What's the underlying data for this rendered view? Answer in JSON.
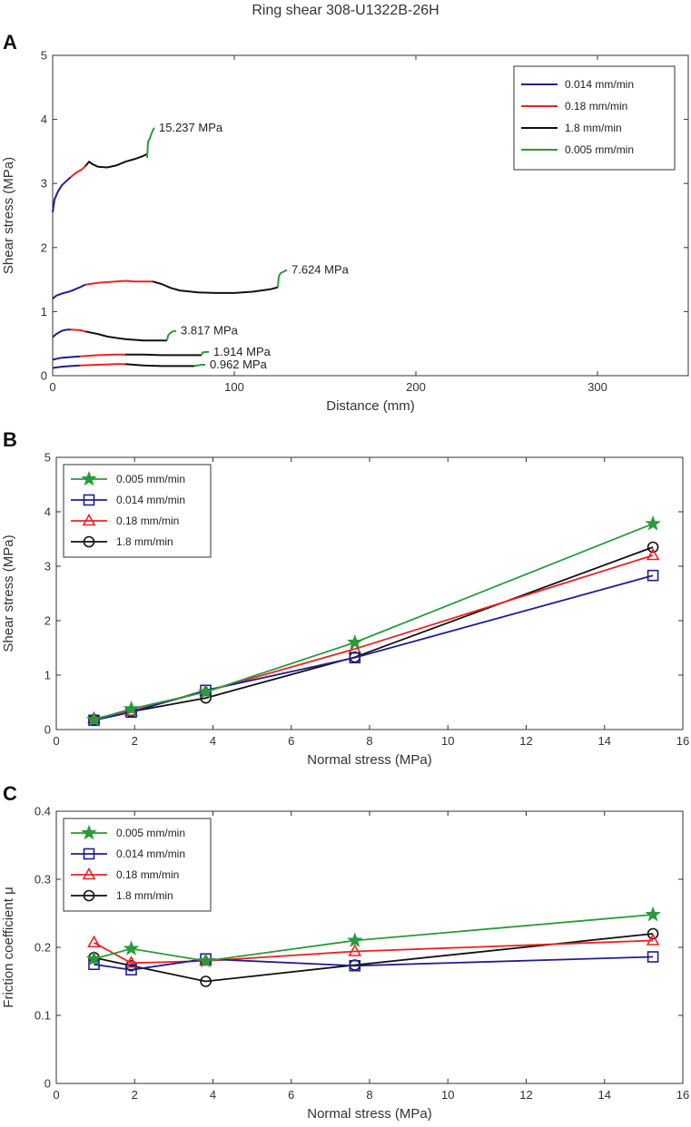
{
  "figure_title": "Ring shear 308-U1322B-26H",
  "chart_data": [
    {
      "panel": "A",
      "type": "line",
      "xlabel": "Distance (mm)",
      "ylabel": "Shear stress (MPa)",
      "xlim": [
        0,
        350
      ],
      "ylim": [
        0,
        5
      ],
      "xticks": [
        0,
        100,
        200,
        300
      ],
      "yticks": [
        0,
        1,
        2,
        3,
        4,
        5
      ],
      "legend": {
        "position": "top-right",
        "entries": [
          {
            "name": "0.014 mm/min",
            "color": "#1f1f8f"
          },
          {
            "name": "0.18 mm/min",
            "color": "#ee2222"
          },
          {
            "name": "1.8 mm/min",
            "color": "#111111"
          },
          {
            "name": "0.005 mm/min",
            "color": "#2a9a3a"
          }
        ]
      },
      "curves": [
        {
          "annotation": "15.237 MPa",
          "segments": [
            {
              "series": "0.014 mm/min",
              "color": "#1f1f8f",
              "points": [
                [
                  0,
                  2.55
                ],
                [
                  1,
                  2.75
                ],
                [
                  3,
                  2.88
                ],
                [
                  5,
                  2.97
                ],
                [
                  8,
                  3.05
                ],
                [
                  10,
                  3.1
                ]
              ]
            },
            {
              "series": "0.18 mm/min",
              "color": "#ee2222",
              "points": [
                [
                  10,
                  3.1
                ],
                [
                  13,
                  3.17
                ],
                [
                  16,
                  3.22
                ],
                [
                  18,
                  3.27
                ]
              ]
            },
            {
              "series": "1.8 mm/min",
              "color": "#111111",
              "points": [
                [
                  18,
                  3.27
                ],
                [
                  20,
                  3.34
                ],
                [
                  22,
                  3.3
                ],
                [
                  25,
                  3.26
                ],
                [
                  30,
                  3.25
                ],
                [
                  35,
                  3.28
                ],
                [
                  40,
                  3.34
                ],
                [
                  45,
                  3.38
                ],
                [
                  50,
                  3.43
                ],
                [
                  52,
                  3.46
                ]
              ]
            },
            {
              "series": "0.005 mm/min",
              "color": "#2a9a3a",
              "points": [
                [
                  52,
                  3.4
                ],
                [
                  52.5,
                  3.65
                ],
                [
                  53.5,
                  3.7
                ],
                [
                  54,
                  3.75
                ],
                [
                  55,
                  3.82
                ],
                [
                  56,
                  3.87
                ]
              ]
            }
          ]
        },
        {
          "annotation": "7.624 MPa",
          "segments": [
            {
              "series": "0.014 mm/min",
              "color": "#1f1f8f",
              "points": [
                [
                  0,
                  1.2
                ],
                [
                  2,
                  1.25
                ],
                [
                  5,
                  1.28
                ],
                [
                  10,
                  1.32
                ],
                [
                  15,
                  1.38
                ],
                [
                  18,
                  1.42
                ]
              ]
            },
            {
              "series": "0.18 mm/min",
              "color": "#ee2222",
              "points": [
                [
                  18,
                  1.42
                ],
                [
                  25,
                  1.45
                ],
                [
                  35,
                  1.47
                ],
                [
                  40,
                  1.48
                ],
                [
                  45,
                  1.47
                ],
                [
                  50,
                  1.47
                ],
                [
                  55,
                  1.47
                ]
              ]
            },
            {
              "series": "1.8 mm/min",
              "color": "#111111",
              "points": [
                [
                  55,
                  1.47
                ],
                [
                  60,
                  1.43
                ],
                [
                  65,
                  1.37
                ],
                [
                  70,
                  1.33
                ],
                [
                  80,
                  1.3
                ],
                [
                  90,
                  1.29
                ],
                [
                  100,
                  1.29
                ],
                [
                  110,
                  1.31
                ],
                [
                  120,
                  1.35
                ],
                [
                  124,
                  1.38
                ]
              ]
            },
            {
              "series": "0.005 mm/min",
              "color": "#2a9a3a",
              "points": [
                [
                  124,
                  1.38
                ],
                [
                  124.5,
                  1.55
                ],
                [
                  125.5,
                  1.6
                ],
                [
                  127,
                  1.62
                ],
                [
                  129,
                  1.65
                ]
              ]
            }
          ]
        },
        {
          "annotation": "3.817 MPa",
          "segments": [
            {
              "series": "0.014 mm/min",
              "color": "#1f1f8f",
              "points": [
                [
                  0,
                  0.6
                ],
                [
                  2,
                  0.65
                ],
                [
                  5,
                  0.7
                ],
                [
                  8,
                  0.72
                ],
                [
                  10,
                  0.72
                ]
              ]
            },
            {
              "series": "0.18 mm/min",
              "color": "#ee2222",
              "points": [
                [
                  10,
                  0.72
                ],
                [
                  15,
                  0.71
                ],
                [
                  18,
                  0.69
                ]
              ]
            },
            {
              "series": "1.8 mm/min",
              "color": "#111111",
              "points": [
                [
                  18,
                  0.69
                ],
                [
                  25,
                  0.65
                ],
                [
                  30,
                  0.61
                ],
                [
                  40,
                  0.57
                ],
                [
                  50,
                  0.55
                ],
                [
                  60,
                  0.55
                ],
                [
                  63,
                  0.55
                ]
              ]
            },
            {
              "series": "0.005 mm/min",
              "color": "#2a9a3a",
              "points": [
                [
                  63,
                  0.55
                ],
                [
                  63.5,
                  0.62
                ],
                [
                  64.5,
                  0.66
                ],
                [
                  66,
                  0.69
                ],
                [
                  68,
                  0.7
                ]
              ]
            }
          ]
        },
        {
          "annotation": "1.914 MPa",
          "segments": [
            {
              "series": "0.014 mm/min",
              "color": "#1f1f8f",
              "points": [
                [
                  0,
                  0.25
                ],
                [
                  5,
                  0.28
                ],
                [
                  10,
                  0.29
                ],
                [
                  15,
                  0.3
                ]
              ]
            },
            {
              "series": "0.18 mm/min",
              "color": "#ee2222",
              "points": [
                [
                  15,
                  0.3
                ],
                [
                  25,
                  0.32
                ],
                [
                  35,
                  0.33
                ],
                [
                  40,
                  0.33
                ]
              ]
            },
            {
              "series": "1.8 mm/min",
              "color": "#111111",
              "points": [
                [
                  40,
                  0.33
                ],
                [
                  50,
                  0.33
                ],
                [
                  60,
                  0.32
                ],
                [
                  70,
                  0.32
                ],
                [
                  80,
                  0.32
                ],
                [
                  82,
                  0.32
                ]
              ]
            },
            {
              "series": "0.005 mm/min",
              "color": "#2a9a3a",
              "points": [
                [
                  82,
                  0.32
                ],
                [
                  82.5,
                  0.36
                ],
                [
                  84,
                  0.37
                ],
                [
                  86,
                  0.37
                ]
              ]
            }
          ]
        },
        {
          "annotation": "0.962 MPa",
          "segments": [
            {
              "series": "0.014 mm/min",
              "color": "#1f1f8f",
              "points": [
                [
                  0,
                  0.12
                ],
                [
                  5,
                  0.14
                ],
                [
                  10,
                  0.15
                ],
                [
                  15,
                  0.16
                ]
              ]
            },
            {
              "series": "0.18 mm/min",
              "color": "#ee2222",
              "points": [
                [
                  15,
                  0.16
                ],
                [
                  25,
                  0.17
                ],
                [
                  35,
                  0.18
                ],
                [
                  40,
                  0.18
                ]
              ]
            },
            {
              "series": "1.8 mm/min",
              "color": "#111111",
              "points": [
                [
                  40,
                  0.18
                ],
                [
                  50,
                  0.16
                ],
                [
                  60,
                  0.15
                ],
                [
                  70,
                  0.15
                ],
                [
                  78,
                  0.15
                ]
              ]
            },
            {
              "series": "0.005 mm/min",
              "color": "#2a9a3a",
              "points": [
                [
                  78,
                  0.15
                ],
                [
                  80,
                  0.16
                ],
                [
                  82,
                  0.17
                ],
                [
                  84,
                  0.17
                ]
              ]
            }
          ]
        }
      ]
    },
    {
      "panel": "B",
      "type": "line",
      "xlabel": "Normal stress (MPa)",
      "ylabel": "Shear stress (MPa)",
      "xlim": [
        0,
        16
      ],
      "ylim": [
        0,
        5
      ],
      "xticks": [
        0,
        2,
        4,
        6,
        8,
        10,
        12,
        14,
        16
      ],
      "yticks": [
        0,
        1,
        2,
        3,
        4,
        5
      ],
      "legend": {
        "position": "top-left"
      },
      "series": [
        {
          "name": "0.005 mm/min",
          "color": "#2a9a3a",
          "marker": "star",
          "points": [
            [
              0.962,
              0.18
            ],
            [
              1.914,
              0.38
            ],
            [
              3.817,
              0.69
            ],
            [
              7.624,
              1.6
            ],
            [
              15.237,
              3.78
            ]
          ]
        },
        {
          "name": "0.014 mm/min",
          "color": "#1f1f8f",
          "marker": "square",
          "points": [
            [
              0.962,
              0.17
            ],
            [
              1.914,
              0.32
            ],
            [
              3.817,
              0.72
            ],
            [
              7.624,
              1.32
            ],
            [
              15.237,
              2.83
            ]
          ]
        },
        {
          "name": "0.18 mm/min",
          "color": "#ee2222",
          "marker": "triangle",
          "points": [
            [
              0.962,
              0.2
            ],
            [
              1.914,
              0.34
            ],
            [
              3.817,
              0.7
            ],
            [
              7.624,
              1.48
            ],
            [
              15.237,
              3.2
            ]
          ]
        },
        {
          "name": "1.8 mm/min",
          "color": "#111111",
          "marker": "circle",
          "points": [
            [
              0.962,
              0.18
            ],
            [
              1.914,
              0.33
            ],
            [
              3.817,
              0.58
            ],
            [
              7.624,
              1.33
            ],
            [
              15.237,
              3.35
            ]
          ]
        }
      ]
    },
    {
      "panel": "C",
      "type": "line",
      "xlabel": "Normal stress (MPa)",
      "ylabel": "Friction coefficient μ",
      "xlim": [
        0,
        16
      ],
      "ylim": [
        0,
        0.4
      ],
      "xticks": [
        0,
        2,
        4,
        6,
        8,
        10,
        12,
        14,
        16
      ],
      "yticks": [
        0,
        0.1,
        0.2,
        0.3,
        0.4
      ],
      "legend": {
        "position": "top-left"
      },
      "series": [
        {
          "name": "0.005 mm/min",
          "color": "#2a9a3a",
          "marker": "star",
          "points": [
            [
              0.962,
              0.183
            ],
            [
              1.914,
              0.198
            ],
            [
              3.817,
              0.18
            ],
            [
              7.624,
              0.21
            ],
            [
              15.237,
              0.248
            ]
          ]
        },
        {
          "name": "0.014 mm/min",
          "color": "#1f1f8f",
          "marker": "square",
          "points": [
            [
              0.962,
              0.175
            ],
            [
              1.914,
              0.167
            ],
            [
              3.817,
              0.183
            ],
            [
              7.624,
              0.173
            ],
            [
              15.237,
              0.186
            ]
          ]
        },
        {
          "name": "0.18 mm/min",
          "color": "#ee2222",
          "marker": "triangle",
          "points": [
            [
              0.962,
              0.207
            ],
            [
              1.914,
              0.177
            ],
            [
              3.817,
              0.18
            ],
            [
              7.624,
              0.194
            ],
            [
              15.237,
              0.21
            ]
          ]
        },
        {
          "name": "1.8 mm/min",
          "color": "#111111",
          "marker": "circle",
          "points": [
            [
              0.962,
              0.185
            ],
            [
              1.914,
              0.173
            ],
            [
              3.817,
              0.15
            ],
            [
              7.624,
              0.174
            ],
            [
              15.237,
              0.22
            ]
          ]
        }
      ]
    }
  ]
}
